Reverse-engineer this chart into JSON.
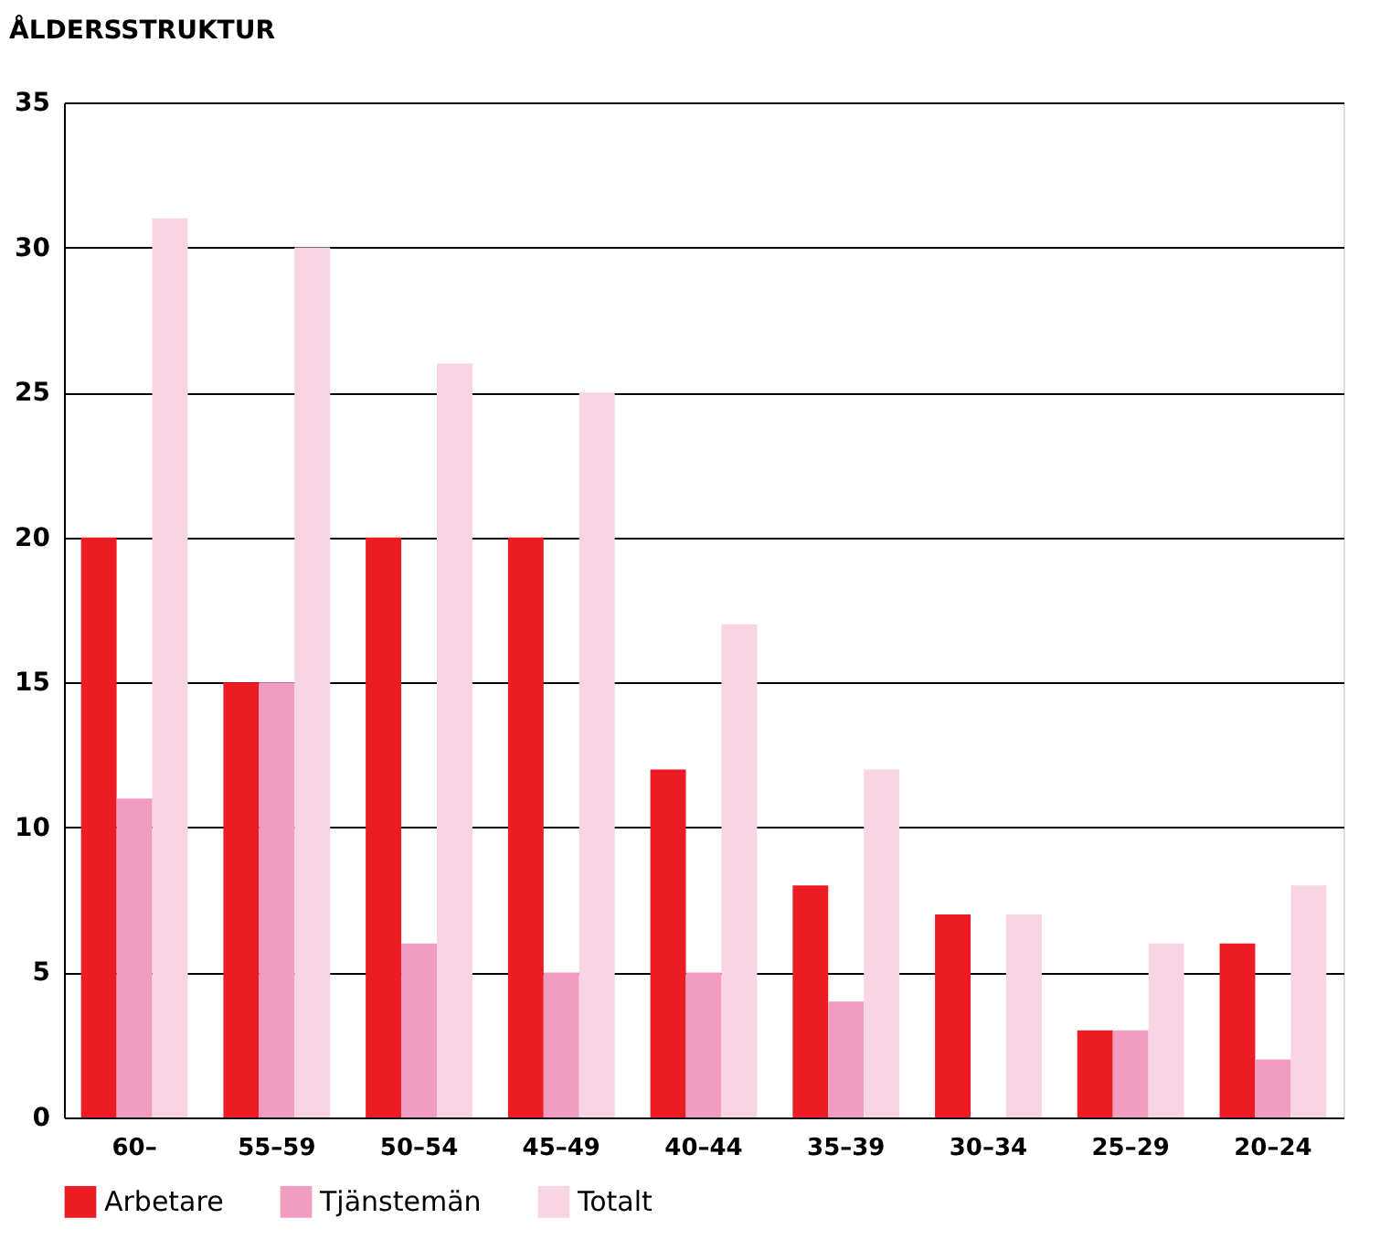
{
  "chart_data": {
    "type": "bar",
    "title": "ÅLDERSSTRUKTUR",
    "categories": [
      "60–",
      "55–59",
      "50–54",
      "45–49",
      "40–44",
      "35–39",
      "30–34",
      "25–29",
      "20–24"
    ],
    "series": [
      {
        "name": "Arbetare",
        "color": "#ed1c24",
        "values": [
          20,
          15,
          20,
          20,
          12,
          8,
          7,
          3,
          6
        ]
      },
      {
        "name": "Tjänstemän",
        "color": "#f19cc0",
        "values": [
          11,
          15,
          6,
          5,
          5,
          4,
          0,
          3,
          2
        ]
      },
      {
        "name": "Totalt",
        "color": "#f9d4e3",
        "values": [
          31,
          30,
          26,
          25,
          17,
          12,
          7,
          6,
          8
        ]
      }
    ],
    "ylim": [
      0,
      35
    ],
    "yticks": [
      0,
      5,
      10,
      15,
      20,
      25,
      30,
      35
    ],
    "grid": "y",
    "legend": "bottom"
  }
}
